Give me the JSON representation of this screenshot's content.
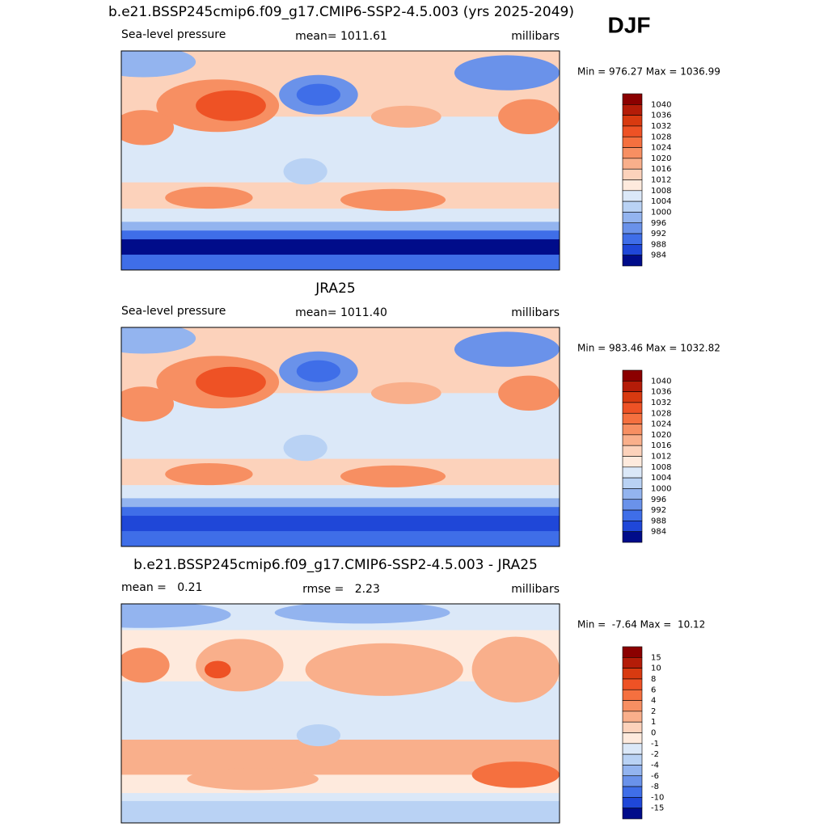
{
  "header": {
    "title": "b.e21.BSSP245cmip6.f09_g17.CMIP6-SSP2-4.5.003 (yrs 2025-2049)",
    "season": "DJF"
  },
  "panels": [
    {
      "left": "Sea-level pressure",
      "center": "mean= 1011.61",
      "right": "millibars",
      "minmax": "Min = 976.27 Max = 1036.99",
      "colorbar": {
        "labels": [
          1040,
          1036,
          1032,
          1028,
          1024,
          1020,
          1016,
          1012,
          1008,
          1004,
          1000,
          996,
          992,
          988,
          984
        ],
        "colors": [
          "#8b0000",
          "#b41c08",
          "#d83a10",
          "#ee5225",
          "#f5703f",
          "#f78f62",
          "#f9af8b",
          "#fcd2bb",
          "#feeadd",
          "#dbe8f8",
          "#b9d2f4",
          "#93b4ef",
          "#6a92ea",
          "#3f6ee8",
          "#1f47d8",
          "#000c8a"
        ]
      }
    },
    {
      "title": "JRA25",
      "left": "Sea-level pressure",
      "center": "mean= 1011.40",
      "right": "millibars",
      "minmax": "Min = 983.46 Max = 1032.82",
      "colorbar": {
        "labels": [
          1040,
          1036,
          1032,
          1028,
          1024,
          1020,
          1016,
          1012,
          1008,
          1004,
          1000,
          996,
          992,
          988,
          984
        ],
        "colors": [
          "#8b0000",
          "#b41c08",
          "#d83a10",
          "#ee5225",
          "#f5703f",
          "#f78f62",
          "#f9af8b",
          "#fcd2bb",
          "#feeadd",
          "#dbe8f8",
          "#b9d2f4",
          "#93b4ef",
          "#6a92ea",
          "#3f6ee8",
          "#1f47d8",
          "#000c8a"
        ]
      }
    },
    {
      "title": "b.e21.BSSP245cmip6.f09_g17.CMIP6-SSP2-4.5.003 - JRA25",
      "left": "mean =   0.21",
      "center": "rmse =   2.23",
      "right": "millibars",
      "minmax": "Min =  -7.64 Max =  10.12",
      "colorbar": {
        "labels": [
          15,
          10,
          8,
          6,
          4,
          2,
          1,
          0,
          -1,
          -2,
          -4,
          -6,
          -8,
          -10,
          -15
        ],
        "colors": [
          "#8b0000",
          "#b41c08",
          "#d83a10",
          "#ee5225",
          "#f5703f",
          "#f78f62",
          "#f9af8b",
          "#fcd2bb",
          "#feeadd",
          "#dbe8f8",
          "#b9d2f4",
          "#93b4ef",
          "#6a92ea",
          "#3f6ee8",
          "#1f47d8",
          "#000c8a"
        ]
      }
    }
  ]
}
